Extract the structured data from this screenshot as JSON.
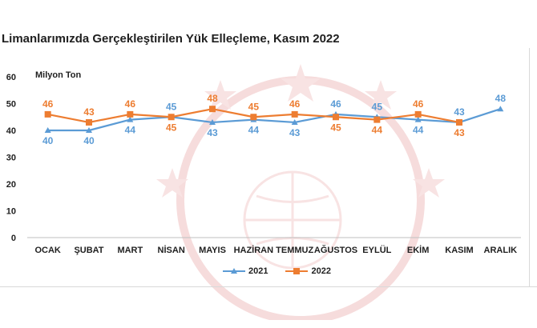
{
  "chart_data": {
    "type": "line",
    "title": "Limanlarımızda Gerçekleştirilen Yük Elleçleme, Kasım 2022",
    "ylabel": "Milyon Ton",
    "xlabel": "",
    "categories": [
      "OCAK",
      "ŞUBAT",
      "MART",
      "NİSAN",
      "MAYIS",
      "HAZİRAN",
      "TEMMUZ",
      "AĞUSTOS",
      "EYLÜL",
      "EKİM",
      "KASIM",
      "ARALIK"
    ],
    "series": [
      {
        "name": "2021",
        "values": [
          40,
          40,
          44,
          45,
          43,
          44,
          43,
          46,
          45,
          44,
          43,
          48
        ],
        "color": "#5b9bd5"
      },
      {
        "name": "2022",
        "values": [
          46,
          43,
          46,
          45,
          48,
          45,
          46,
          45,
          44,
          46,
          43,
          null
        ],
        "color": "#ed7d31"
      }
    ],
    "ylim": [
      0,
      60
    ],
    "yticks": [
      "0",
      "10",
      "20",
      "30",
      "40",
      "50",
      "60"
    ],
    "grid": false,
    "legend_position": "bottom"
  }
}
